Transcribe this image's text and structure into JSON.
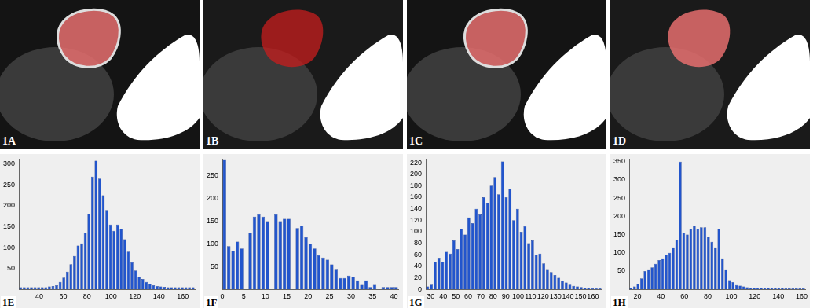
{
  "images": [
    {
      "label": "1A"
    },
    {
      "label": "1B"
    },
    {
      "label": "1C"
    },
    {
      "label": "1D"
    }
  ],
  "chart_data": [
    {
      "type": "histogram",
      "title": "1E",
      "color": "#2255cc",
      "grid": false,
      "bins": [
        23,
        26,
        29,
        32,
        35,
        38,
        41,
        44,
        47,
        50,
        53,
        56,
        59,
        62,
        65,
        68,
        71,
        74,
        77,
        80,
        83,
        86,
        89,
        92,
        95,
        98,
        101,
        104,
        107,
        110,
        113,
        116,
        119,
        122,
        125,
        128,
        131,
        134,
        137,
        140,
        143,
        146,
        149,
        152,
        155,
        158,
        161,
        164,
        167,
        170
      ],
      "values": [
        5,
        5,
        5,
        5,
        5,
        5,
        5,
        5,
        7,
        8,
        10,
        18,
        28,
        42,
        60,
        80,
        105,
        110,
        135,
        180,
        270,
        308,
        265,
        225,
        190,
        155,
        140,
        155,
        145,
        120,
        90,
        65,
        45,
        30,
        25,
        18,
        13,
        10,
        8,
        7,
        6,
        5,
        5,
        5,
        5,
        5,
        5,
        5,
        5
      ],
      "xlim": [
        23,
        170
      ],
      "xticks": [
        40,
        60,
        80,
        100,
        120,
        140,
        160
      ],
      "ylim": [
        0,
        310
      ],
      "yticks": [
        50,
        100,
        150,
        200,
        250,
        300
      ]
    },
    {
      "type": "histogram",
      "title": "1F",
      "color": "#2255cc",
      "grid": false,
      "bins": [
        0,
        1,
        2,
        3,
        4,
        5,
        6,
        7,
        8,
        9,
        10,
        11,
        12,
        13,
        14,
        15,
        16,
        17,
        18,
        19,
        20,
        21,
        22,
        23,
        24,
        25,
        26,
        27,
        28,
        29,
        30,
        31,
        32,
        33,
        34,
        35,
        36,
        37,
        38,
        39,
        40,
        41
      ],
      "values": [
        285,
        95,
        85,
        105,
        90,
        0,
        125,
        160,
        165,
        160,
        150,
        0,
        165,
        150,
        155,
        155,
        0,
        135,
        140,
        115,
        100,
        90,
        75,
        70,
        65,
        55,
        45,
        25,
        25,
        30,
        28,
        20,
        10,
        20,
        5,
        10,
        0,
        5,
        5,
        5,
        5
      ],
      "xlim": [
        0,
        41
      ],
      "xticks": [
        0,
        5,
        10,
        15,
        20,
        25,
        30,
        35,
        40
      ],
      "ylim": [
        0,
        285
      ],
      "yticks": [
        50,
        100,
        150,
        200,
        250
      ]
    },
    {
      "type": "histogram",
      "title": "1G",
      "color": "#2255cc",
      "grid": false,
      "bins": [
        26,
        29,
        32,
        35,
        38,
        41,
        44,
        47,
        50,
        53,
        56,
        59,
        62,
        65,
        68,
        71,
        74,
        77,
        80,
        83,
        86,
        89,
        92,
        95,
        98,
        101,
        104,
        107,
        110,
        113,
        116,
        119,
        122,
        125,
        128,
        131,
        134,
        137,
        140,
        143,
        146,
        149,
        152,
        155,
        158,
        161,
        164,
        167
      ],
      "values": [
        5,
        8,
        48,
        55,
        48,
        65,
        62,
        85,
        70,
        105,
        95,
        125,
        115,
        140,
        130,
        160,
        150,
        180,
        195,
        165,
        222,
        160,
        175,
        120,
        140,
        100,
        110,
        80,
        85,
        60,
        62,
        45,
        35,
        30,
        25,
        20,
        15,
        12,
        8,
        6,
        5,
        4,
        3,
        3,
        2,
        2,
        2
      ],
      "xlim": [
        26,
        167
      ],
      "xticks": [
        30,
        40,
        50,
        60,
        70,
        80,
        90,
        100,
        110,
        120,
        130,
        140,
        150,
        160
      ],
      "ylim": [
        0,
        225
      ],
      "yticks": [
        0,
        20,
        40,
        60,
        80,
        100,
        120,
        140,
        160,
        180,
        200,
        220
      ]
    },
    {
      "type": "histogram",
      "title": "1H",
      "color": "#2255cc",
      "grid": false,
      "bins": [
        13,
        16,
        19,
        22,
        25,
        28,
        31,
        34,
        37,
        40,
        43,
        46,
        49,
        52,
        55,
        58,
        61,
        64,
        67,
        70,
        73,
        76,
        79,
        82,
        85,
        88,
        91,
        94,
        97,
        100,
        103,
        106,
        109,
        112,
        115,
        118,
        121,
        124,
        127,
        130,
        133,
        136,
        139,
        142,
        145,
        148,
        151,
        154,
        157,
        160,
        163
      ],
      "values": [
        5,
        8,
        15,
        30,
        50,
        55,
        60,
        70,
        80,
        85,
        95,
        100,
        115,
        135,
        350,
        155,
        150,
        165,
        175,
        165,
        170,
        170,
        145,
        130,
        115,
        165,
        85,
        55,
        25,
        20,
        12,
        10,
        8,
        6,
        5,
        5,
        5,
        5,
        5,
        5,
        4,
        4,
        4,
        4,
        3,
        3,
        3,
        3,
        3,
        3
      ],
      "xlim": [
        13,
        163
      ],
      "xticks": [
        20,
        40,
        60,
        80,
        100,
        120,
        140,
        160
      ],
      "ylim": [
        0,
        355
      ],
      "yticks": [
        50,
        100,
        150,
        200,
        250,
        300,
        350
      ]
    }
  ]
}
